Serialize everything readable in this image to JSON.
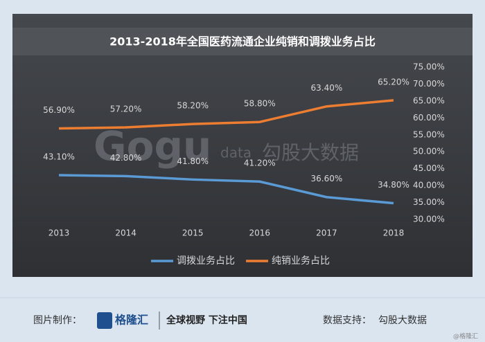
{
  "chart_data": {
    "type": "line",
    "title": "2013-2018年全国医药流通企业纯销和调拨业务占比",
    "categories": [
      "2013",
      "2014",
      "2015",
      "2016",
      "2017",
      "2018"
    ],
    "series": [
      {
        "name": "调拨业务占比",
        "color": "#5b9bd5",
        "values": [
          43.1,
          42.8,
          41.8,
          41.2,
          36.6,
          34.8
        ],
        "value_labels": [
          "43.10%",
          "42.80%",
          "41.80%",
          "41.20%",
          "36.60%",
          "34.80%"
        ]
      },
      {
        "name": "纯销业务占比",
        "color": "#ed7d31",
        "values": [
          56.9,
          57.2,
          58.2,
          58.8,
          63.4,
          65.2
        ],
        "value_labels": [
          "56.90%",
          "57.20%",
          "58.20%",
          "58.80%",
          "63.40%",
          "65.20%"
        ]
      }
    ],
    "ylim": [
      30,
      75
    ],
    "yticks": [
      {
        "value": 30,
        "label": "30.00%"
      },
      {
        "value": 35,
        "label": "35.00%"
      },
      {
        "value": 40,
        "label": "40.00%"
      },
      {
        "value": 45,
        "label": "45.00%"
      },
      {
        "value": 50,
        "label": "50.00%"
      },
      {
        "value": 55,
        "label": "55.00%"
      },
      {
        "value": 60,
        "label": "60.00%"
      },
      {
        "value": 65,
        "label": "65.00%"
      },
      {
        "value": 70,
        "label": "70.00%"
      },
      {
        "value": 75,
        "label": "75.00%"
      }
    ],
    "grid": false,
    "legend": "bottom",
    "watermark": {
      "brand": "Gogu",
      "sub": "data",
      "cn": "勾股大数据"
    }
  },
  "footer": {
    "made_by_label": "图片制作：",
    "logo": "格隆汇",
    "slogan": "全球视野 下注中国",
    "source_label": "数据支持：",
    "source": "勾股大数据",
    "credit": "@格隆汇"
  }
}
